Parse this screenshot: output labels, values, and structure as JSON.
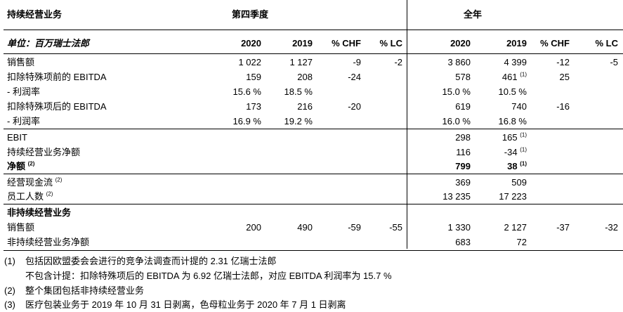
{
  "header": {
    "section_title": "持续经营业务",
    "q4_label": "第四季度",
    "fy_label": "全年",
    "unit_label": "单位：百万瑞士法郎",
    "columns": [
      "2020",
      "2019",
      "% CHF",
      "% LC",
      "2020",
      "2019",
      "% CHF",
      "% LC"
    ]
  },
  "continuing": [
    {
      "label": "销售额",
      "sup": "",
      "bold": false,
      "cells": [
        "1 022",
        "1 127",
        "-9",
        "-2",
        "3 860",
        "4 399",
        "-12",
        "-5"
      ],
      "cell_sups": [
        "",
        "",
        "",
        "",
        "",
        "",
        "",
        ""
      ]
    },
    {
      "label": "扣除特殊项前的 EBITDA",
      "sup": "",
      "bold": false,
      "cells": [
        "159",
        "208",
        "-24",
        "",
        "578",
        "461",
        "25",
        ""
      ],
      "cell_sups": [
        "",
        "",
        "",
        "",
        "",
        "(1)",
        "",
        ""
      ]
    },
    {
      "label": "- 利润率",
      "sup": "",
      "bold": false,
      "cells": [
        "15.6 %",
        "18.5 %",
        "",
        "",
        "15.0 %",
        "10.5 %",
        "",
        ""
      ],
      "cell_sups": [
        "",
        "",
        "",
        "",
        "",
        "",
        "",
        ""
      ]
    },
    {
      "label": "扣除特殊项后的 EBITDA",
      "sup": "",
      "bold": false,
      "cells": [
        "173",
        "216",
        "-20",
        "",
        "619",
        "740",
        "-16",
        ""
      ],
      "cell_sups": [
        "",
        "",
        "",
        "",
        "",
        "",
        "",
        ""
      ]
    },
    {
      "label": "- 利润率",
      "sup": "",
      "bold": false,
      "cells": [
        "16.9 %",
        "19.2 %",
        "",
        "",
        "16.0 %",
        "16.8 %",
        "",
        ""
      ],
      "cell_sups": [
        "",
        "",
        "",
        "",
        "",
        "",
        "",
        ""
      ]
    }
  ],
  "earnings": [
    {
      "label": "EBIT",
      "sup": "",
      "bold": false,
      "fy2020": "298",
      "fy2019": "165",
      "fy2019_sup": "(1)"
    },
    {
      "label": "持续经营业务净额",
      "sup": "",
      "bold": false,
      "fy2020": "116",
      "fy2019": "-34",
      "fy2019_sup": "(1)"
    },
    {
      "label": "净额",
      "sup": "(2)",
      "bold": true,
      "fy2020": "799",
      "fy2019": "38",
      "fy2019_sup": "(1)"
    }
  ],
  "other": [
    {
      "label": "经营现金流",
      "sup": "(2)",
      "fy2020": "369",
      "fy2019": "509"
    },
    {
      "label": "员工人数",
      "sup": "(2)",
      "fy2020": "13 235",
      "fy2019": "17 223"
    }
  ],
  "discontinued": {
    "title": "非持续经营业务",
    "rows": [
      {
        "label": "销售额",
        "cells": [
          "200",
          "490",
          "-59",
          "-55",
          "1 330",
          "2 127",
          "-37",
          "-32"
        ]
      },
      {
        "label": "非持续经营业务净额",
        "cells": [
          "",
          "",
          "",
          "",
          "683",
          "72",
          "",
          ""
        ]
      }
    ]
  },
  "notes": [
    {
      "num": "(1)",
      "text": "包括因欧盟委会会进行的竞争法调查而计提的 2.31 亿瑞士法郎"
    },
    {
      "num": "",
      "text": "不包含计提：扣除特殊项后的 EBITDA 为 6.92 亿瑞士法郎，对应 EBITDA 利润率为 15.7 %"
    },
    {
      "num": "(2)",
      "text": "整个集团包括非持续经营业务"
    },
    {
      "num": "(3)",
      "text": "医疗包装业务于 2019 年 10 月 31 日剥离，色母粒业务于 2020 年 7 月 1 日剥离"
    }
  ]
}
